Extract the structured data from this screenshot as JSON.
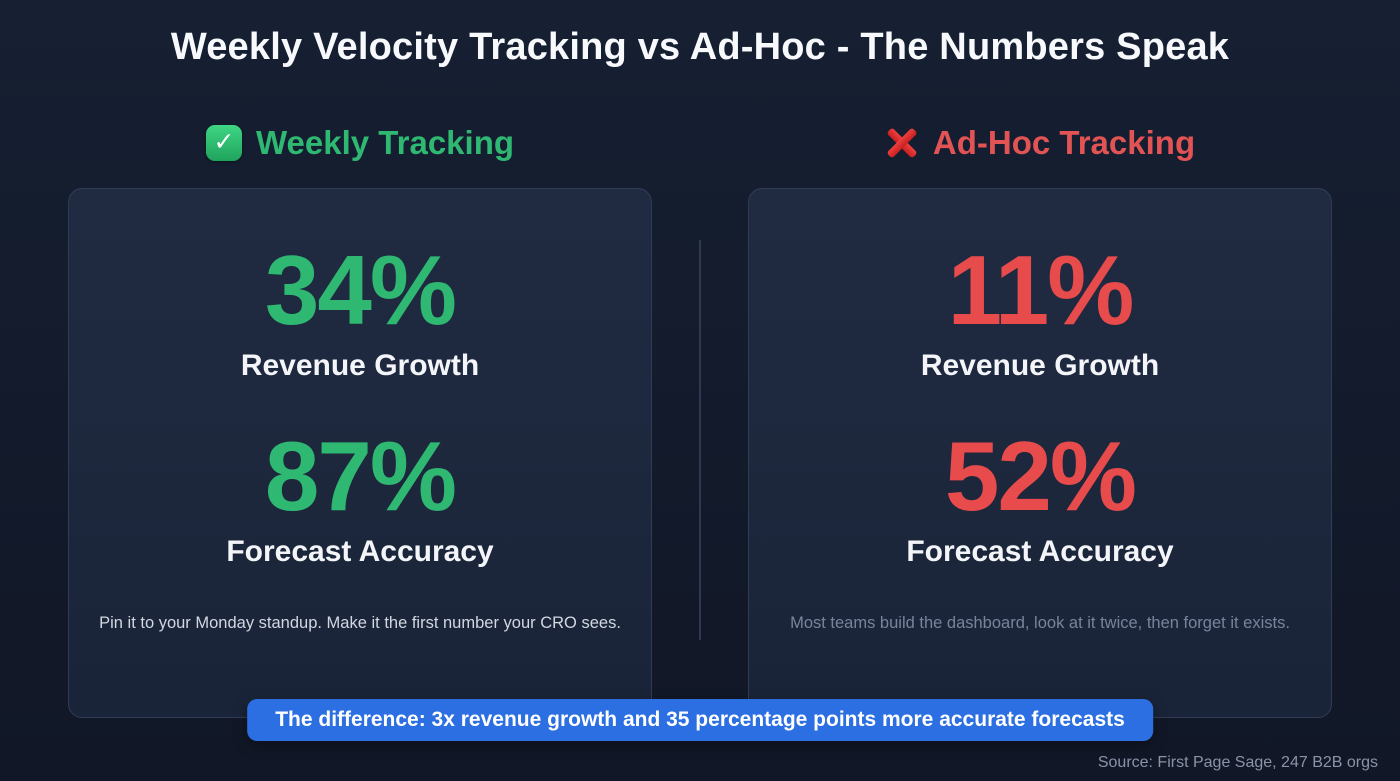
{
  "page": {
    "title": "Weekly Velocity Tracking vs Ad-Hoc - The Numbers Speak",
    "source": "Source: First Page Sage, 247 B2B orgs"
  },
  "columns": {
    "weekly": {
      "icon": "check-badge-icon",
      "header": "Weekly Tracking",
      "stats": [
        {
          "value": "34%",
          "label": "Revenue Growth"
        },
        {
          "value": "87%",
          "label": "Forecast Accuracy"
        }
      ],
      "note": "Pin it to your Monday standup. Make it the first number your CRO sees."
    },
    "adhoc": {
      "icon": "x-badge-icon",
      "header": "Ad-Hoc Tracking",
      "stats": [
        {
          "value": "11%",
          "label": "Revenue Growth"
        },
        {
          "value": "52%",
          "label": "Forecast Accuracy"
        }
      ],
      "note": "Most teams build the dashboard, look at it twice, then forget it exists."
    }
  },
  "banner": {
    "text": "The difference: 3x revenue growth and 35 percentage points more accurate forecasts"
  },
  "colors": {
    "background": "#131a2b",
    "card_background": "#1c2638",
    "card_border": "#303c57",
    "green": "#2eb872",
    "red": "#e84b4b",
    "banner_blue": "#2c6fe2",
    "text_white": "#f3f5f9",
    "muted_gray": "#8b93a7"
  },
  "chart_data": {
    "type": "table",
    "title": "Weekly Velocity Tracking vs Ad-Hoc - The Numbers Speak",
    "categories": [
      "Revenue Growth",
      "Forecast Accuracy"
    ],
    "series": [
      {
        "name": "Weekly Tracking",
        "values": [
          34,
          87
        ]
      },
      {
        "name": "Ad-Hoc Tracking",
        "values": [
          11,
          52
        ]
      }
    ],
    "unit": "%",
    "annotation": "The difference: 3x revenue growth and 35 percentage points more accurate forecasts",
    "source": "Source: First Page Sage, 247 B2B orgs",
    "legend_position": "top",
    "grid": false
  }
}
